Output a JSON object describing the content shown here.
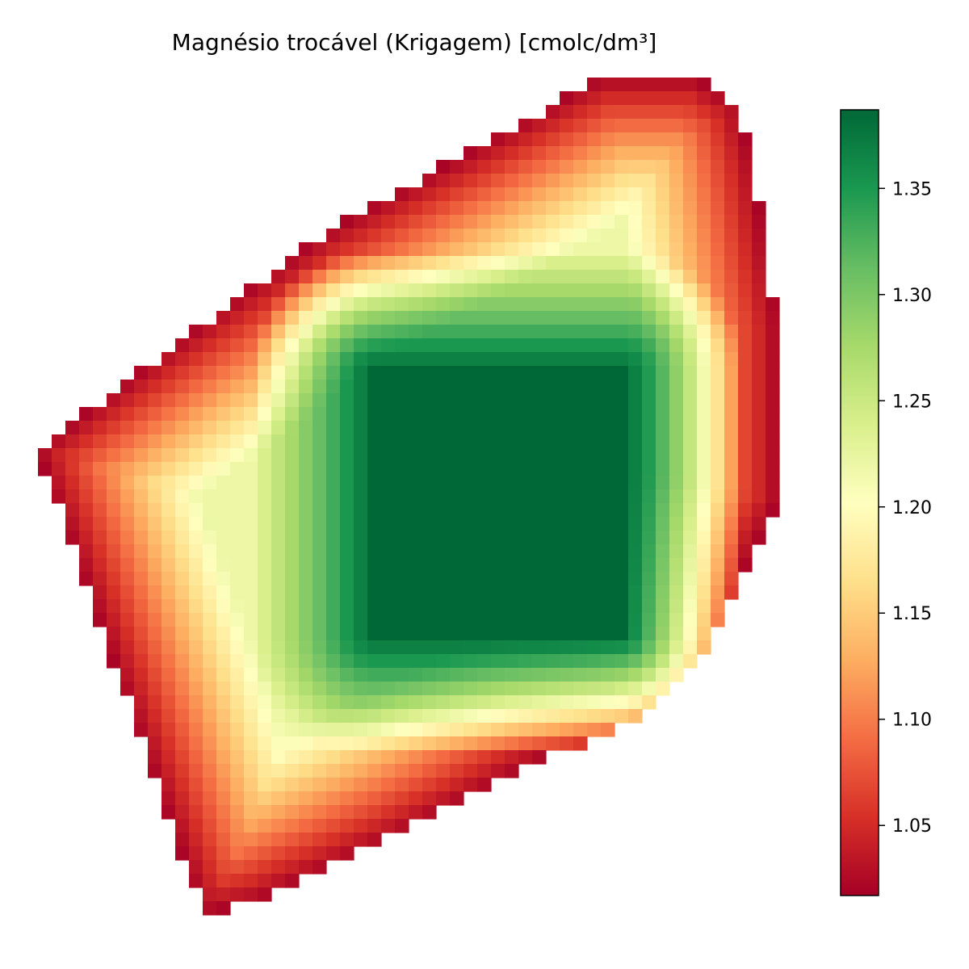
{
  "chart_data": {
    "type": "heatmap",
    "title": "Magnésio trocável (Krigagem) [cmolc/dm³]",
    "xlabel": "",
    "ylabel": "",
    "colormap": "RdYlGn",
    "axes_visible": false,
    "grid": false,
    "colorbar": {
      "position": "right",
      "vmin": 1.017,
      "vmax": 1.387,
      "ticks": [
        1.05,
        1.1,
        1.15,
        1.2,
        1.25,
        1.3,
        1.35
      ],
      "tick_labels": [
        "1.05",
        "1.10",
        "1.15",
        "1.20",
        "1.25",
        "1.30",
        "1.35"
      ]
    },
    "field": {
      "high_center_value": 1.387,
      "high_region_cols": [
        24,
        42
      ],
      "high_region_rows": [
        21,
        40
      ],
      "low_value": 1.02,
      "mid_value": 1.22
    },
    "colors": {
      "low": "#a50026",
      "mid": "#ffffbf",
      "high": "#006837"
    }
  }
}
